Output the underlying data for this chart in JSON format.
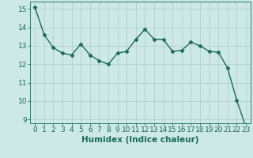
{
  "x": [
    0,
    1,
    2,
    3,
    4,
    5,
    6,
    7,
    8,
    9,
    10,
    11,
    12,
    13,
    14,
    15,
    16,
    17,
    18,
    19,
    20,
    21,
    22,
    23
  ],
  "y": [
    15.1,
    13.6,
    12.9,
    12.6,
    12.5,
    13.1,
    12.5,
    12.2,
    12.0,
    12.6,
    12.7,
    13.35,
    13.9,
    13.35,
    13.35,
    12.7,
    12.75,
    13.2,
    13.0,
    12.7,
    12.65,
    11.8,
    10.05,
    8.6
  ],
  "line_color": "#1a6b5a",
  "marker": "D",
  "marker_size": 2.5,
  "bg_color": "#cce9e7",
  "grid_color": "#b0cfcd",
  "xlabel": "Humidex (Indice chaleur)",
  "ylim": [
    8.8,
    15.4
  ],
  "xlim": [
    -0.5,
    23.5
  ],
  "yticks": [
    9,
    10,
    11,
    12,
    13,
    14,
    15
  ],
  "xticks": [
    0,
    1,
    2,
    3,
    4,
    5,
    6,
    7,
    8,
    9,
    10,
    11,
    12,
    13,
    14,
    15,
    16,
    17,
    18,
    19,
    20,
    21,
    22,
    23
  ],
  "tick_color": "#1a6b5a",
  "label_color": "#1a6b5a",
  "label_fontsize": 7.5,
  "tick_fontsize": 6.5,
  "linewidth": 1.0
}
